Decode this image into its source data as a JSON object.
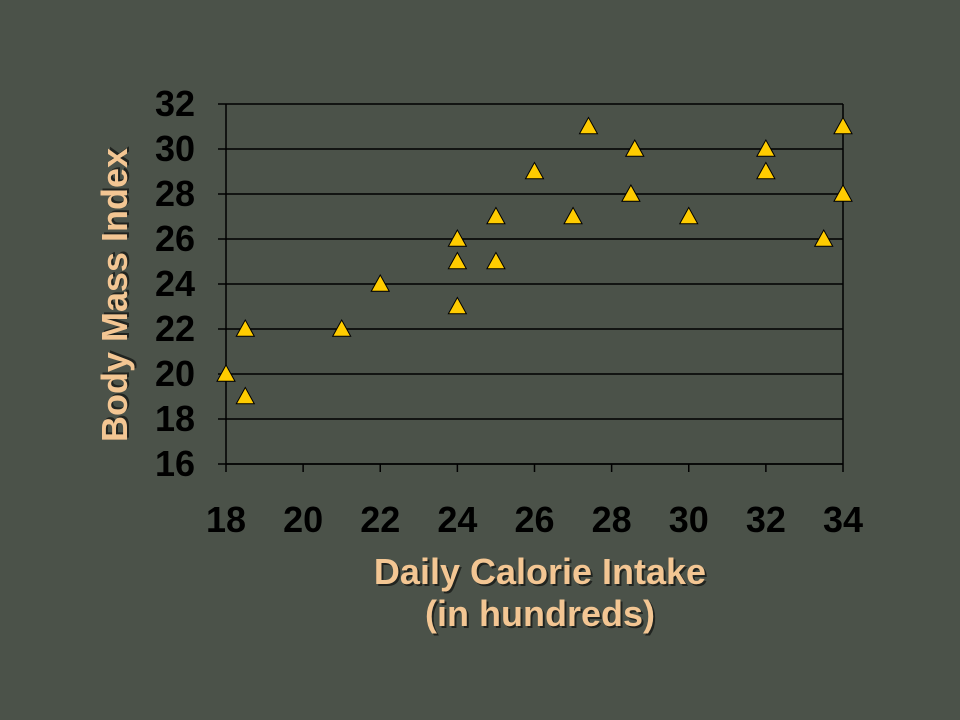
{
  "chart_data": {
    "type": "scatter",
    "title": "",
    "xlabel_lines": [
      "Daily Calorie Intake",
      "(in hundreds)"
    ],
    "ylabel": "Body Mass Index",
    "xlim": [
      18,
      34
    ],
    "ylim": [
      16,
      32
    ],
    "x_ticks": [
      18,
      20,
      22,
      24,
      26,
      28,
      30,
      32,
      34
    ],
    "y_ticks": [
      16,
      18,
      20,
      22,
      24,
      26,
      28,
      30,
      32
    ],
    "grid": "horizontal",
    "marker": "triangle",
    "marker_color": "#ffcc00",
    "plot_background": "#4b5249",
    "axis_title_color": "#f3c693",
    "points": [
      {
        "x": 18,
        "y": 20
      },
      {
        "x": 18.5,
        "y": 22
      },
      {
        "x": 18.5,
        "y": 19
      },
      {
        "x": 21,
        "y": 22
      },
      {
        "x": 22,
        "y": 24
      },
      {
        "x": 24,
        "y": 26
      },
      {
        "x": 24,
        "y": 25
      },
      {
        "x": 24,
        "y": 23
      },
      {
        "x": 25,
        "y": 27
      },
      {
        "x": 25,
        "y": 25
      },
      {
        "x": 26,
        "y": 29
      },
      {
        "x": 27,
        "y": 27
      },
      {
        "x": 27.4,
        "y": 31
      },
      {
        "x": 28.5,
        "y": 28
      },
      {
        "x": 28.6,
        "y": 30
      },
      {
        "x": 30,
        "y": 27
      },
      {
        "x": 32,
        "y": 30
      },
      {
        "x": 32,
        "y": 29
      },
      {
        "x": 33.5,
        "y": 26
      },
      {
        "x": 34,
        "y": 31
      },
      {
        "x": 34,
        "y": 28
      }
    ]
  }
}
